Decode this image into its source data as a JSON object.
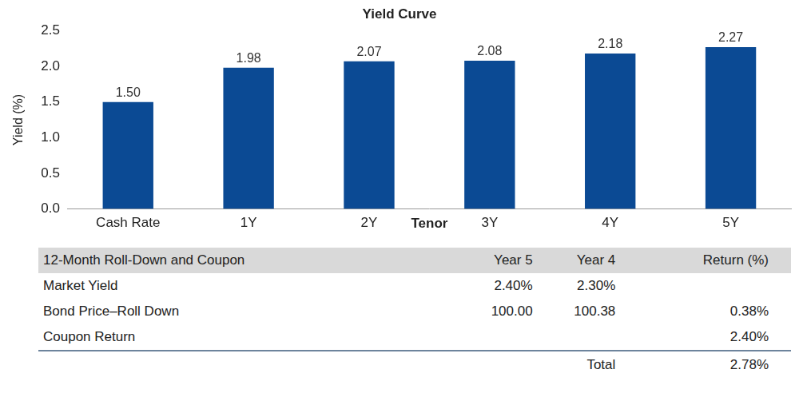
{
  "chart_data": {
    "type": "bar",
    "title": "Yield Curve",
    "x_label": "Tenor",
    "y_label": "Yield (%)",
    "categories": [
      "Cash Rate",
      "1Y",
      "2Y",
      "3Y",
      "4Y",
      "5Y"
    ],
    "values": [
      1.5,
      1.98,
      2.07,
      2.08,
      2.18,
      2.27
    ],
    "value_labels": [
      "1.50",
      "1.98",
      "2.07",
      "2.08",
      "2.18",
      "2.27"
    ],
    "color": "#0b4a94",
    "data_labels": true,
    "grid": false,
    "ylim": [
      0,
      2.5
    ],
    "yticks": [
      {
        "value": 0,
        "label": "0.0"
      },
      {
        "value": 0.5,
        "label": "0.5"
      },
      {
        "value": 1,
        "label": "1.0"
      },
      {
        "value": 1.5,
        "label": "1.5"
      },
      {
        "value": 2,
        "label": "2.0"
      },
      {
        "value": 2.5,
        "label": "2.5"
      }
    ]
  },
  "table": {
    "header": [
      "12-Month Roll-Down and Coupon",
      "Year 5",
      "Year 4",
      "Return (%)"
    ],
    "rows": [
      [
        "Market Yield",
        "2.40%",
        "2.30%",
        null
      ],
      [
        "Bond Price–Roll Down",
        "100.00",
        "100.38",
        "0.38%"
      ],
      [
        "Coupon Return",
        null,
        null,
        "2.40%"
      ]
    ],
    "total": {
      "label": "Total",
      "value": "2.78%"
    }
  }
}
